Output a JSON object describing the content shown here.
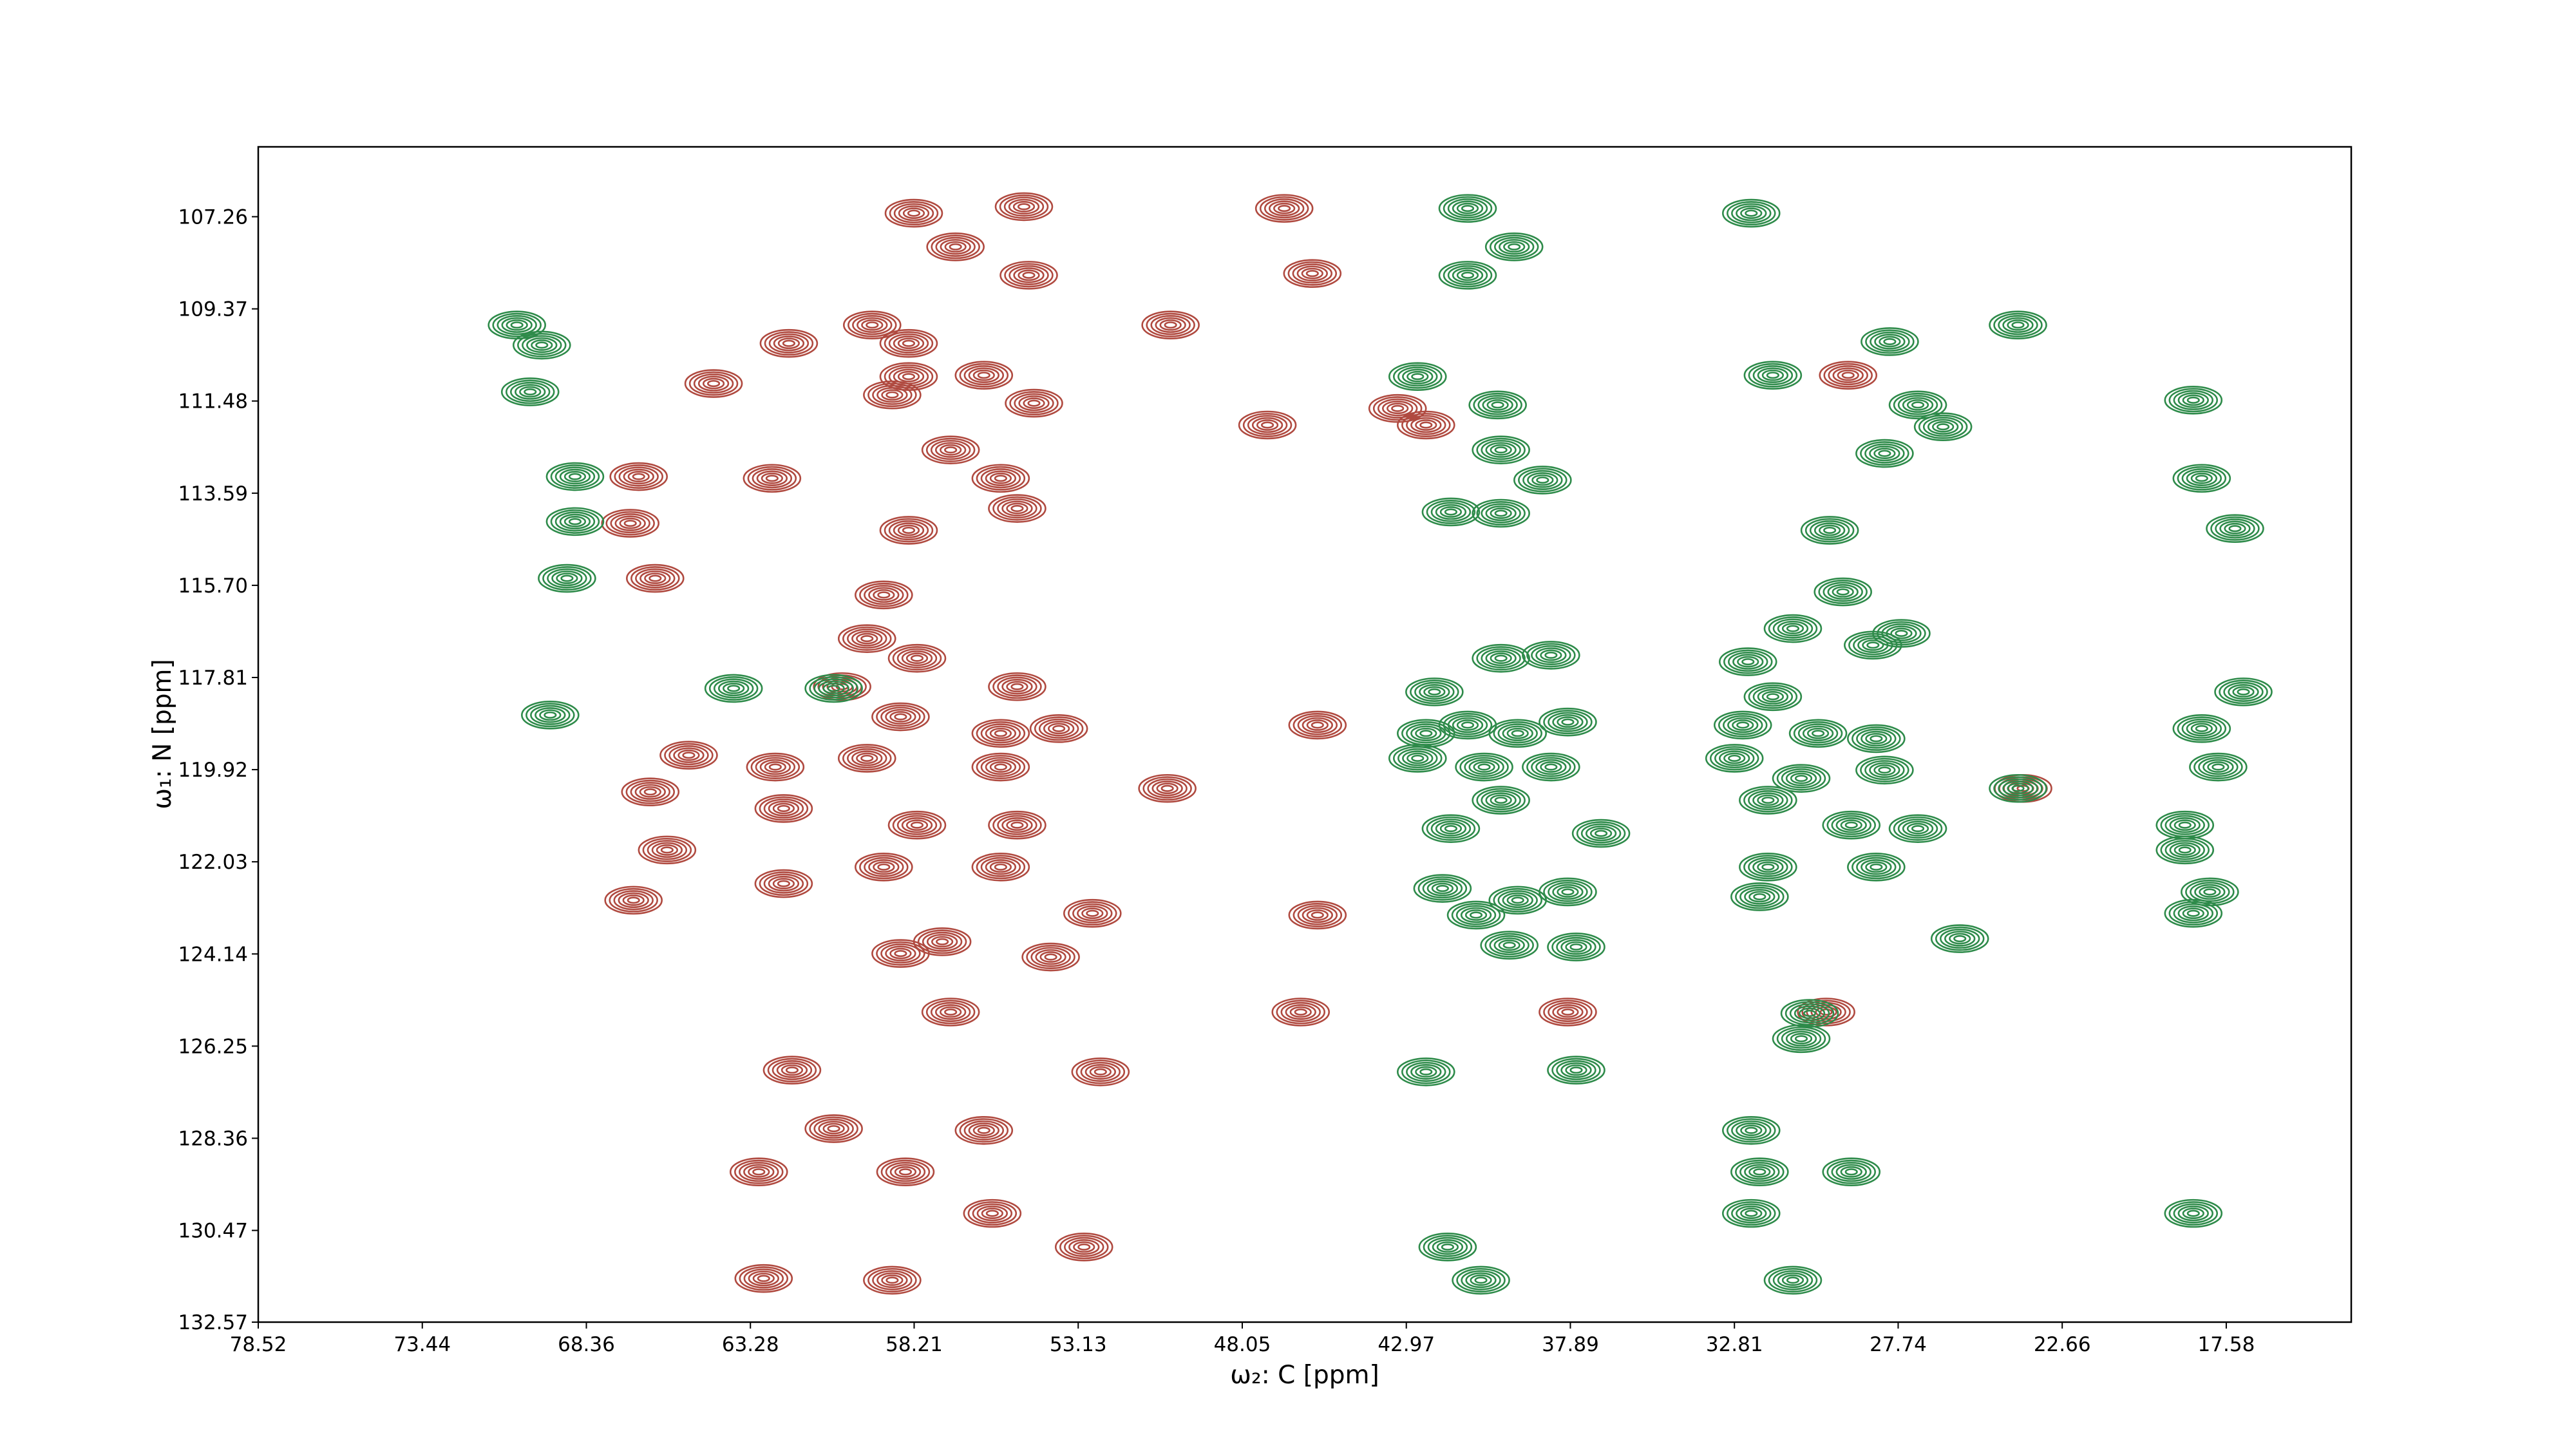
{
  "chart_data": {
    "type": "contour",
    "xlabel": "ω₂: C [ppm]",
    "ylabel": "ω₁: N [ppm]",
    "xlim": [
      78.52,
      13.71
    ],
    "ylim": [
      132.57,
      105.66
    ],
    "xticks": [
      78.52,
      73.44,
      68.36,
      63.28,
      58.21,
      53.13,
      48.05,
      42.97,
      37.89,
      32.81,
      27.74,
      22.66,
      17.58
    ],
    "yticks": [
      107.26,
      109.37,
      111.48,
      113.59,
      {
        "value": 115.7,
        "label": "115.70"
      },
      117.81,
      119.92,
      122.03,
      124.14,
      126.25,
      128.36,
      130.47,
      132.57
    ],
    "series": [
      {
        "color": "#b04a40",
        "x": [
          58.22,
          54.81,
          56.93,
          54.66,
          45.88,
          46.75,
          50.27,
          59.51,
          62.09,
          58.38,
          64.42,
          58.38,
          56.05,
          54.5,
          58.89,
          47.27,
          43.24,
          42.36,
          66.74,
          62.61,
          57.08,
          55.53,
          55.02,
          58.38,
          67.0,
          66.23,
          59.15,
          59.67,
          58.12,
          60.44,
          55.02,
          58.63,
          55.53,
          53.73,
          45.72,
          50.37,
          65.19,
          62.51,
          66.38,
          62.25,
          65.86,
          66.9,
          59.67,
          55.53,
          58.12,
          55.02,
          62.25,
          59.15,
          55.53,
          52.69,
          45.72,
          58.63,
          57.34,
          57.08,
          46.24,
          53.98,
          52.44,
          61.99,
          60.7,
          56.05,
          63.02,
          58.48,
          55.79,
          52.95,
          62.87,
          58.89,
          29.97,
          29.29,
          37.97,
          23.87
        ],
        "y": [
          107.18,
          107.03,
          107.95,
          108.6,
          108.56,
          107.07,
          109.74,
          109.74,
          110.16,
          110.16,
          111.08,
          110.92,
          110.89,
          111.53,
          111.34,
          112.03,
          111.65,
          112.03,
          113.21,
          113.25,
          112.6,
          113.25,
          113.94,
          114.44,
          114.28,
          115.54,
          115.92,
          116.92,
          117.37,
          118.02,
          118.02,
          118.71,
          119.09,
          118.98,
          118.9,
          120.35,
          119.59,
          119.86,
          120.43,
          120.81,
          121.76,
          122.91,
          119.66,
          119.86,
          121.19,
          121.19,
          122.53,
          122.15,
          122.15,
          123.21,
          123.25,
          124.13,
          123.86,
          125.47,
          125.47,
          124.21,
          126.84,
          126.8,
          128.14,
          128.18,
          129.13,
          129.13,
          130.08,
          130.85,
          131.57,
          131.61,
          125.47,
          110.89,
          125.47,
          120.35
        ]
      },
      {
        "color": "#2e8b4a",
        "x": [
          70.51,
          69.74,
          70.1,
          68.71,
          68.71,
          68.96,
          69.48,
          63.8,
          60.7,
          41.07,
          39.63,
          41.07,
          42.62,
          40.14,
          40.04,
          38.75,
          41.59,
          40.04,
          32.29,
          31.62,
          28.0,
          27.13,
          26.35,
          28.16,
          29.86,
          29.45,
          31.0,
          28.52,
          32.39,
          31.62,
          32.55,
          30.22,
          28.42,
          32.81,
          30.74,
          28.16,
          42.1,
          40.04,
          38.49,
          42.36,
          41.07,
          39.52,
          37.97,
          42.62,
          40.56,
          38.49,
          41.59,
          40.04,
          36.94,
          31.77,
          29.19,
          27.13,
          31.77,
          28.42,
          32.03,
          41.85,
          40.81,
          39.52,
          37.97,
          39.78,
          37.71,
          25.83,
          24.03,
          18.6,
          18.34,
          17.31,
          17.05,
          18.34,
          17.83,
          18.86,
          18.86,
          18.09,
          18.6,
          30.48,
          30.74,
          42.36,
          37.71,
          32.29,
          32.03,
          29.19,
          32.29,
          41.69,
          40.66,
          31.0,
          18.6,
          27.64,
          24.03
        ],
        "y": [
          109.74,
          110.2,
          111.27,
          113.21,
          114.24,
          115.54,
          118.67,
          118.06,
          118.06,
          107.07,
          107.95,
          108.6,
          110.92,
          111.57,
          112.6,
          113.29,
          114.02,
          114.05,
          107.18,
          110.89,
          110.12,
          111.57,
          112.07,
          112.68,
          114.44,
          115.85,
          116.69,
          117.07,
          117.45,
          118.25,
          118.9,
          119.09,
          119.21,
          119.66,
          120.12,
          119.93,
          118.14,
          117.37,
          117.3,
          119.09,
          118.9,
          119.09,
          118.83,
          119.66,
          119.86,
          119.86,
          121.27,
          120.62,
          121.38,
          120.62,
          121.19,
          121.27,
          122.15,
          122.15,
          122.83,
          122.64,
          123.25,
          122.91,
          122.72,
          123.94,
          123.98,
          123.79,
          109.74,
          111.46,
          113.25,
          114.4,
          118.14,
          118.98,
          119.86,
          121.19,
          121.76,
          122.72,
          123.21,
          125.5,
          126.08,
          126.84,
          126.8,
          128.18,
          129.13,
          129.13,
          130.08,
          130.85,
          131.61,
          131.61,
          130.08,
          116.8,
          120.35
        ]
      }
    ]
  }
}
